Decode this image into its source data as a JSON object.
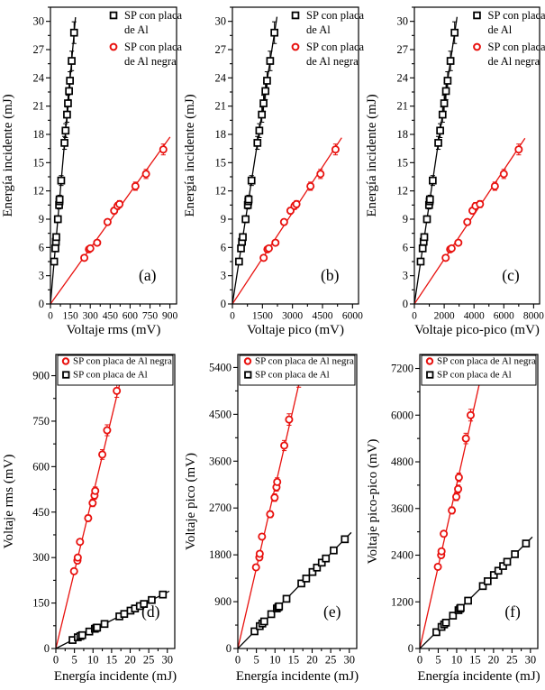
{
  "figure_title": "",
  "colors": {
    "series_al": "#000000",
    "series_al_negra": "#e8110e",
    "axis": "#000000",
    "background": "#ffffff"
  },
  "chart_data": [
    {
      "type": "scatter",
      "panel": "(a)",
      "xlabel": "Voltaje rms (mV)",
      "ylabel": "Energía incidente (mJ)",
      "xlim": [
        0,
        950
      ],
      "xticks": [
        0,
        150,
        300,
        450,
        600,
        750,
        900
      ],
      "xminor": 75,
      "ylim": [
        0,
        31.5
      ],
      "yticks": [
        0,
        3,
        6,
        9,
        12,
        15,
        18,
        21,
        24,
        27,
        30
      ],
      "yminor": 1.5,
      "grid": false,
      "legend": {
        "boxed": false,
        "position": "top-right",
        "entries": [
          {
            "label": "SP con placa de Al",
            "lines": [
              "SP con placa",
              "de Al"
            ],
            "marker": "square",
            "color": "#000000"
          },
          {
            "label": "SP con placa de Al negra",
            "lines": [
              "SP con placa",
              "de Al negra"
            ],
            "marker": "circle",
            "color": "#e8110e"
          }
        ]
      },
      "series": [
        {
          "name": "SP con placa de Al",
          "marker": "square",
          "color": "#000000",
          "err_frac": 0.04,
          "fit": "linear-origin",
          "x": [
            28,
            37,
            41,
            44,
            56,
            65,
            68,
            69,
            81,
            106,
            114,
            125,
            132,
            140,
            147,
            160,
            178
          ],
          "y": [
            4.5,
            5.9,
            6.6,
            7.1,
            9.0,
            10.5,
            10.9,
            11.1,
            13.1,
            17.1,
            18.4,
            20.1,
            21.3,
            22.6,
            23.7,
            25.8,
            28.8
          ]
        },
        {
          "name": "SP con placa de Al negra",
          "marker": "circle",
          "color": "#e8110e",
          "err_frac": 0.035,
          "fit": "linear-origin",
          "x": [
            255,
            290,
            300,
            352,
            430,
            480,
            505,
            520,
            640,
            720,
            850
          ],
          "y": [
            4.9,
            5.8,
            5.9,
            6.5,
            8.7,
            9.9,
            10.4,
            10.6,
            12.5,
            13.8,
            16.4
          ]
        }
      ]
    },
    {
      "type": "scatter",
      "panel": "(b)",
      "xlabel": "Voltaje pico (mV)",
      "ylabel": "Energía incidente (mJ)",
      "xlim": [
        0,
        6300
      ],
      "xticks": [
        0,
        1500,
        3000,
        4500,
        6000
      ],
      "xminor": 750,
      "ylim": [
        0,
        31.5
      ],
      "yticks": [
        0,
        3,
        6,
        9,
        12,
        15,
        18,
        21,
        24,
        27,
        30
      ],
      "yminor": 1.5,
      "grid": false,
      "legend": {
        "boxed": false,
        "position": "top-right",
        "entries": [
          {
            "label": "SP con placa de Al",
            "lines": [
              "SP con placa",
              "de Al"
            ],
            "marker": "square",
            "color": "#000000"
          },
          {
            "label": "SP con placa de Al negra",
            "lines": [
              "SP con placa",
              "de Al negra"
            ],
            "marker": "circle",
            "color": "#e8110e"
          }
        ]
      },
      "series": [
        {
          "name": "SP con placa de Al",
          "marker": "square",
          "color": "#000000",
          "err_frac": 0.04,
          "fit": "linear-origin",
          "x": [
            330,
            430,
            480,
            520,
            660,
            770,
            795,
            810,
            955,
            1250,
            1345,
            1470,
            1555,
            1650,
            1730,
            1885,
            2100
          ],
          "y": [
            4.5,
            5.9,
            6.6,
            7.1,
            9.0,
            10.5,
            10.9,
            11.1,
            13.1,
            17.1,
            18.4,
            20.1,
            21.3,
            22.6,
            23.7,
            25.8,
            28.8
          ]
        },
        {
          "name": "SP con placa de Al negra",
          "marker": "circle",
          "color": "#e8110e",
          "err_frac": 0.035,
          "fit": "linear-origin",
          "x": [
            1560,
            1750,
            1820,
            2150,
            2580,
            2900,
            3100,
            3200,
            3900,
            4400,
            5150
          ],
          "y": [
            4.9,
            5.8,
            5.9,
            6.5,
            8.7,
            9.9,
            10.4,
            10.6,
            12.5,
            13.8,
            16.4
          ]
        }
      ]
    },
    {
      "type": "scatter",
      "panel": "(c)",
      "xlabel": "Voltaje pico-pico (mV)",
      "ylabel": "Energía incidente (mJ)",
      "xlim": [
        0,
        8400
      ],
      "xticks": [
        0,
        2000,
        4000,
        6000,
        8000
      ],
      "xminor": 1000,
      "ylim": [
        0,
        31.5
      ],
      "yticks": [
        0,
        3,
        6,
        9,
        12,
        15,
        18,
        21,
        24,
        27,
        30
      ],
      "yminor": 1.5,
      "grid": false,
      "legend": {
        "boxed": false,
        "position": "top-right",
        "entries": [
          {
            "label": "SP con placa de Al",
            "lines": [
              "SP con placa",
              "de Al"
            ],
            "marker": "square",
            "color": "#000000"
          },
          {
            "label": "SP con placa de Al negra",
            "lines": [
              "SP con placa",
              "de Al negra"
            ],
            "marker": "circle",
            "color": "#e8110e"
          }
        ]
      },
      "series": [
        {
          "name": "SP con placa de Al",
          "marker": "square",
          "color": "#000000",
          "err_frac": 0.04,
          "fit": "linear-origin",
          "x": [
            420,
            555,
            620,
            665,
            845,
            985,
            1025,
            1045,
            1230,
            1605,
            1730,
            1890,
            2000,
            2120,
            2230,
            2425,
            2700
          ],
          "y": [
            4.5,
            5.9,
            6.6,
            7.1,
            9.0,
            10.5,
            10.9,
            11.1,
            13.1,
            17.1,
            18.4,
            20.1,
            21.3,
            22.6,
            23.7,
            25.8,
            28.8
          ]
        },
        {
          "name": "SP con placa de Al negra",
          "marker": "circle",
          "color": "#e8110e",
          "err_frac": 0.035,
          "fit": "linear-origin",
          "x": [
            2100,
            2400,
            2500,
            2950,
            3550,
            3900,
            4100,
            4400,
            5400,
            6000,
            7000
          ],
          "y": [
            4.9,
            5.8,
            5.9,
            6.5,
            8.7,
            9.9,
            10.4,
            10.6,
            12.5,
            13.8,
            16.4
          ]
        }
      ]
    },
    {
      "type": "scatter",
      "panel": "(d)",
      "xlabel": "Energía incidente (mJ)",
      "ylabel": "Voltaje rms (mV)",
      "xlim": [
        0,
        32
      ],
      "xticks": [
        0,
        5,
        10,
        15,
        20,
        25,
        30
      ],
      "xminor": 2.5,
      "ylim": [
        0,
        970
      ],
      "yticks": [
        0,
        150,
        300,
        450,
        600,
        750,
        900
      ],
      "yminor": 75,
      "grid": false,
      "legend": {
        "boxed": true,
        "position": "top",
        "entries": [
          {
            "label": "SP con placa de Al negra",
            "lines": [
              "SP con placa de Al negra"
            ],
            "marker": "circle",
            "color": "#e8110e"
          },
          {
            "label": "SP con placa  de Al",
            "lines": [
              "SP con placa  de Al"
            ],
            "marker": "square",
            "color": "#000000"
          }
        ]
      },
      "series": [
        {
          "name": "SP con placa de Al negra",
          "marker": "circle",
          "color": "#e8110e",
          "err_frac": 0.025,
          "fit": "linear-origin",
          "x": [
            4.9,
            5.8,
            5.9,
            6.5,
            8.7,
            9.9,
            10.4,
            10.6,
            12.5,
            13.8,
            16.4
          ],
          "y": [
            255,
            290,
            300,
            352,
            430,
            480,
            505,
            520,
            640,
            720,
            850
          ]
        },
        {
          "name": "SP con placa de Al",
          "marker": "square",
          "color": "#000000",
          "err_frac": 0.02,
          "fit": "linear-origin",
          "x": [
            4.5,
            5.9,
            6.6,
            7.1,
            9.0,
            10.5,
            10.9,
            11.1,
            13.1,
            17.1,
            18.4,
            20.1,
            21.3,
            22.6,
            23.7,
            25.8,
            28.8
          ],
          "y": [
            28,
            37,
            41,
            44,
            56,
            65,
            68,
            69,
            81,
            106,
            114,
            125,
            132,
            140,
            147,
            160,
            178
          ]
        }
      ]
    },
    {
      "type": "scatter",
      "panel": "(e)",
      "xlabel": "Energía incidente (mJ)",
      "ylabel": "Voltaje pico (mV)",
      "xlim": [
        0,
        32
      ],
      "xticks": [
        0,
        5,
        10,
        15,
        20,
        25,
        30
      ],
      "xminor": 2.5,
      "ylim": [
        0,
        5650
      ],
      "yticks": [
        0,
        900,
        1800,
        2700,
        3600,
        4500,
        5400
      ],
      "yminor": 450,
      "grid": false,
      "legend": {
        "boxed": true,
        "position": "top",
        "entries": [
          {
            "label": "SP con placa de Al negra",
            "lines": [
              "SP con placa de Al negra"
            ],
            "marker": "circle",
            "color": "#e8110e"
          },
          {
            "label": "SP con placa de Al",
            "lines": [
              "SP con placa de Al"
            ],
            "marker": "square",
            "color": "#000000"
          }
        ]
      },
      "series": [
        {
          "name": "SP con placa de Al negra",
          "marker": "circle",
          "color": "#e8110e",
          "err_frac": 0.025,
          "fit": "linear-origin",
          "x": [
            4.9,
            5.8,
            5.9,
            6.5,
            8.7,
            9.9,
            10.4,
            10.6,
            12.5,
            13.8,
            16.4
          ],
          "y": [
            1560,
            1750,
            1820,
            2150,
            2580,
            2900,
            3100,
            3200,
            3900,
            4400,
            5150
          ]
        },
        {
          "name": "SP con placa de Al",
          "marker": "square",
          "color": "#000000",
          "err_frac": 0.02,
          "fit": "linear-origin",
          "x": [
            4.5,
            5.9,
            6.6,
            7.1,
            9.0,
            10.5,
            10.9,
            11.1,
            13.1,
            17.1,
            18.4,
            20.1,
            21.3,
            22.6,
            23.7,
            25.8,
            28.8
          ],
          "y": [
            330,
            430,
            480,
            520,
            660,
            770,
            795,
            810,
            955,
            1250,
            1345,
            1470,
            1555,
            1650,
            1730,
            1885,
            2100
          ]
        }
      ]
    },
    {
      "type": "scatter",
      "panel": "(f)",
      "xlabel": "Energía incidente (mJ)",
      "ylabel": "Voltaje pico-pico (mV)",
      "xlim": [
        0,
        32
      ],
      "xticks": [
        0,
        5,
        10,
        15,
        20,
        25,
        30
      ],
      "xminor": 2.5,
      "ylim": [
        0,
        7560
      ],
      "yticks": [
        0,
        1200,
        2400,
        3600,
        4800,
        6000,
        7200
      ],
      "yminor": 600,
      "grid": false,
      "legend": {
        "boxed": true,
        "position": "top",
        "entries": [
          {
            "label": "SP con placa de Al negra",
            "lines": [
              "SP con placa de Al negra"
            ],
            "marker": "circle",
            "color": "#e8110e"
          },
          {
            "label": "SP con placa de Al",
            "lines": [
              "SP con placa de Al"
            ],
            "marker": "square",
            "color": "#000000"
          }
        ]
      },
      "series": [
        {
          "name": "SP con placa de Al negra",
          "marker": "circle",
          "color": "#e8110e",
          "err_frac": 0.025,
          "fit": "linear-origin",
          "x": [
            4.9,
            5.8,
            5.9,
            6.5,
            8.7,
            9.9,
            10.4,
            10.6,
            12.5,
            13.8,
            16.4
          ],
          "y": [
            2100,
            2400,
            2500,
            2950,
            3550,
            3900,
            4100,
            4400,
            5400,
            6000,
            7000
          ]
        },
        {
          "name": "SP con placa de Al",
          "marker": "square",
          "color": "#000000",
          "err_frac": 0.02,
          "fit": "linear-origin",
          "x": [
            4.5,
            5.9,
            6.6,
            7.1,
            9.0,
            10.5,
            10.9,
            11.1,
            13.1,
            17.1,
            18.4,
            20.1,
            21.3,
            22.6,
            23.7,
            25.8,
            28.8
          ],
          "y": [
            420,
            555,
            620,
            665,
            845,
            985,
            1025,
            1045,
            1230,
            1605,
            1730,
            1890,
            2000,
            2120,
            2230,
            2425,
            2700
          ]
        }
      ]
    }
  ]
}
